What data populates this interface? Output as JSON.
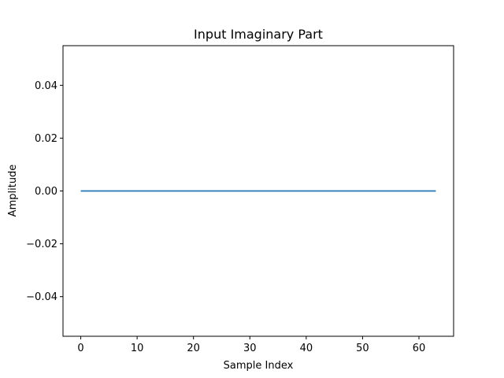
{
  "chart_data": {
    "type": "line",
    "title": "Input Imaginary Part",
    "xlabel": "Sample Index",
    "ylabel": "Amplitude",
    "xlim": [
      -3.15,
      66.15
    ],
    "ylim": [
      -0.055,
      0.055
    ],
    "xticks": [
      0,
      10,
      20,
      30,
      40,
      50,
      60
    ],
    "yticks": [
      -0.04,
      -0.02,
      0.0,
      0.02,
      0.04
    ],
    "ytick_labels": [
      "−0.04",
      "−0.02",
      "0.00",
      "0.02",
      "0.04"
    ],
    "grid": false,
    "series": [
      {
        "color": "#1f77b4",
        "x_start": 0,
        "x_end": 63,
        "x_step": 1,
        "value": 0.0
      }
    ]
  }
}
